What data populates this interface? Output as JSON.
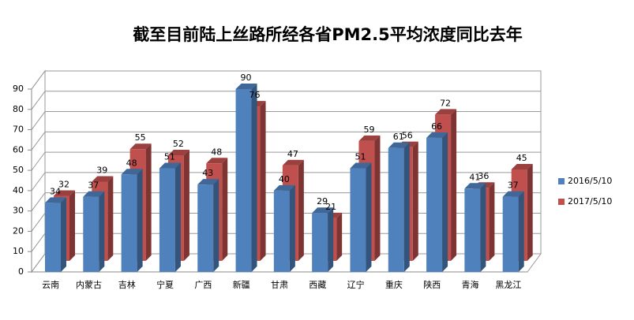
{
  "chart_data": {
    "type": "bar3d",
    "title": "截至目前陆上丝路所经各省PM2.5平均浓度同比去年",
    "categories": [
      "云南",
      "内蒙古",
      "吉林",
      "宁夏",
      "广西",
      "新疆",
      "甘肃",
      "西藏",
      "辽宁",
      "重庆",
      "陕西",
      "青海",
      "黑龙江"
    ],
    "series": [
      {
        "name": "2016/5/10",
        "color": "#4f81bd",
        "values": [
          34,
          37,
          48,
          51,
          43,
          90,
          40,
          29,
          51,
          61,
          66,
          41,
          37
        ]
      },
      {
        "name": "2017/5/10",
        "color": "#c0504d",
        "values": [
          32,
          39,
          55,
          52,
          48,
          76,
          47,
          21,
          59,
          56,
          72,
          36,
          45
        ]
      }
    ],
    "ylim": [
      0,
      90
    ],
    "yticks": [
      0,
      10,
      20,
      30,
      40,
      50,
      60,
      70,
      80,
      90
    ],
    "grid": true,
    "legend": "right"
  }
}
